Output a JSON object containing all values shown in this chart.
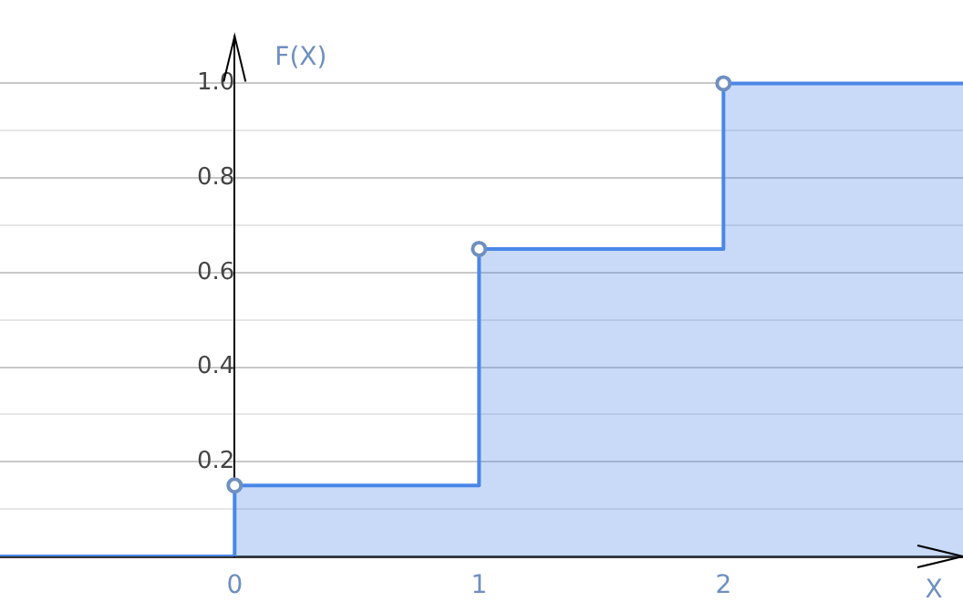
{
  "chart_data": {
    "type": "step",
    "xlabel": "X",
    "ylabel": "F(X)",
    "x": [
      -0.96,
      0,
      1,
      2,
      2.98
    ],
    "series": [
      {
        "color": "#4a86e8",
        "values": [
          0,
          0.15,
          0.65,
          1,
          1
        ]
      }
    ],
    "xlim": [
      -0.96,
      2.98
    ],
    "ylim": [
      0,
      1.1
    ],
    "xticks": [
      0,
      1,
      2
    ],
    "yticks": [
      {
        "value": 0.1,
        "label": null
      },
      0.2,
      {
        "value": 0.3,
        "label": null
      },
      0.4,
      {
        "value": 0.5,
        "label": null
      },
      0.6,
      {
        "value": 0.7,
        "label": null
      },
      0.8,
      {
        "value": 0.9,
        "label": null
      },
      {
        "value": 1,
        "label": "1.0"
      }
    ],
    "grid": "y",
    "marker": "circle",
    "line_style": "solid"
  }
}
